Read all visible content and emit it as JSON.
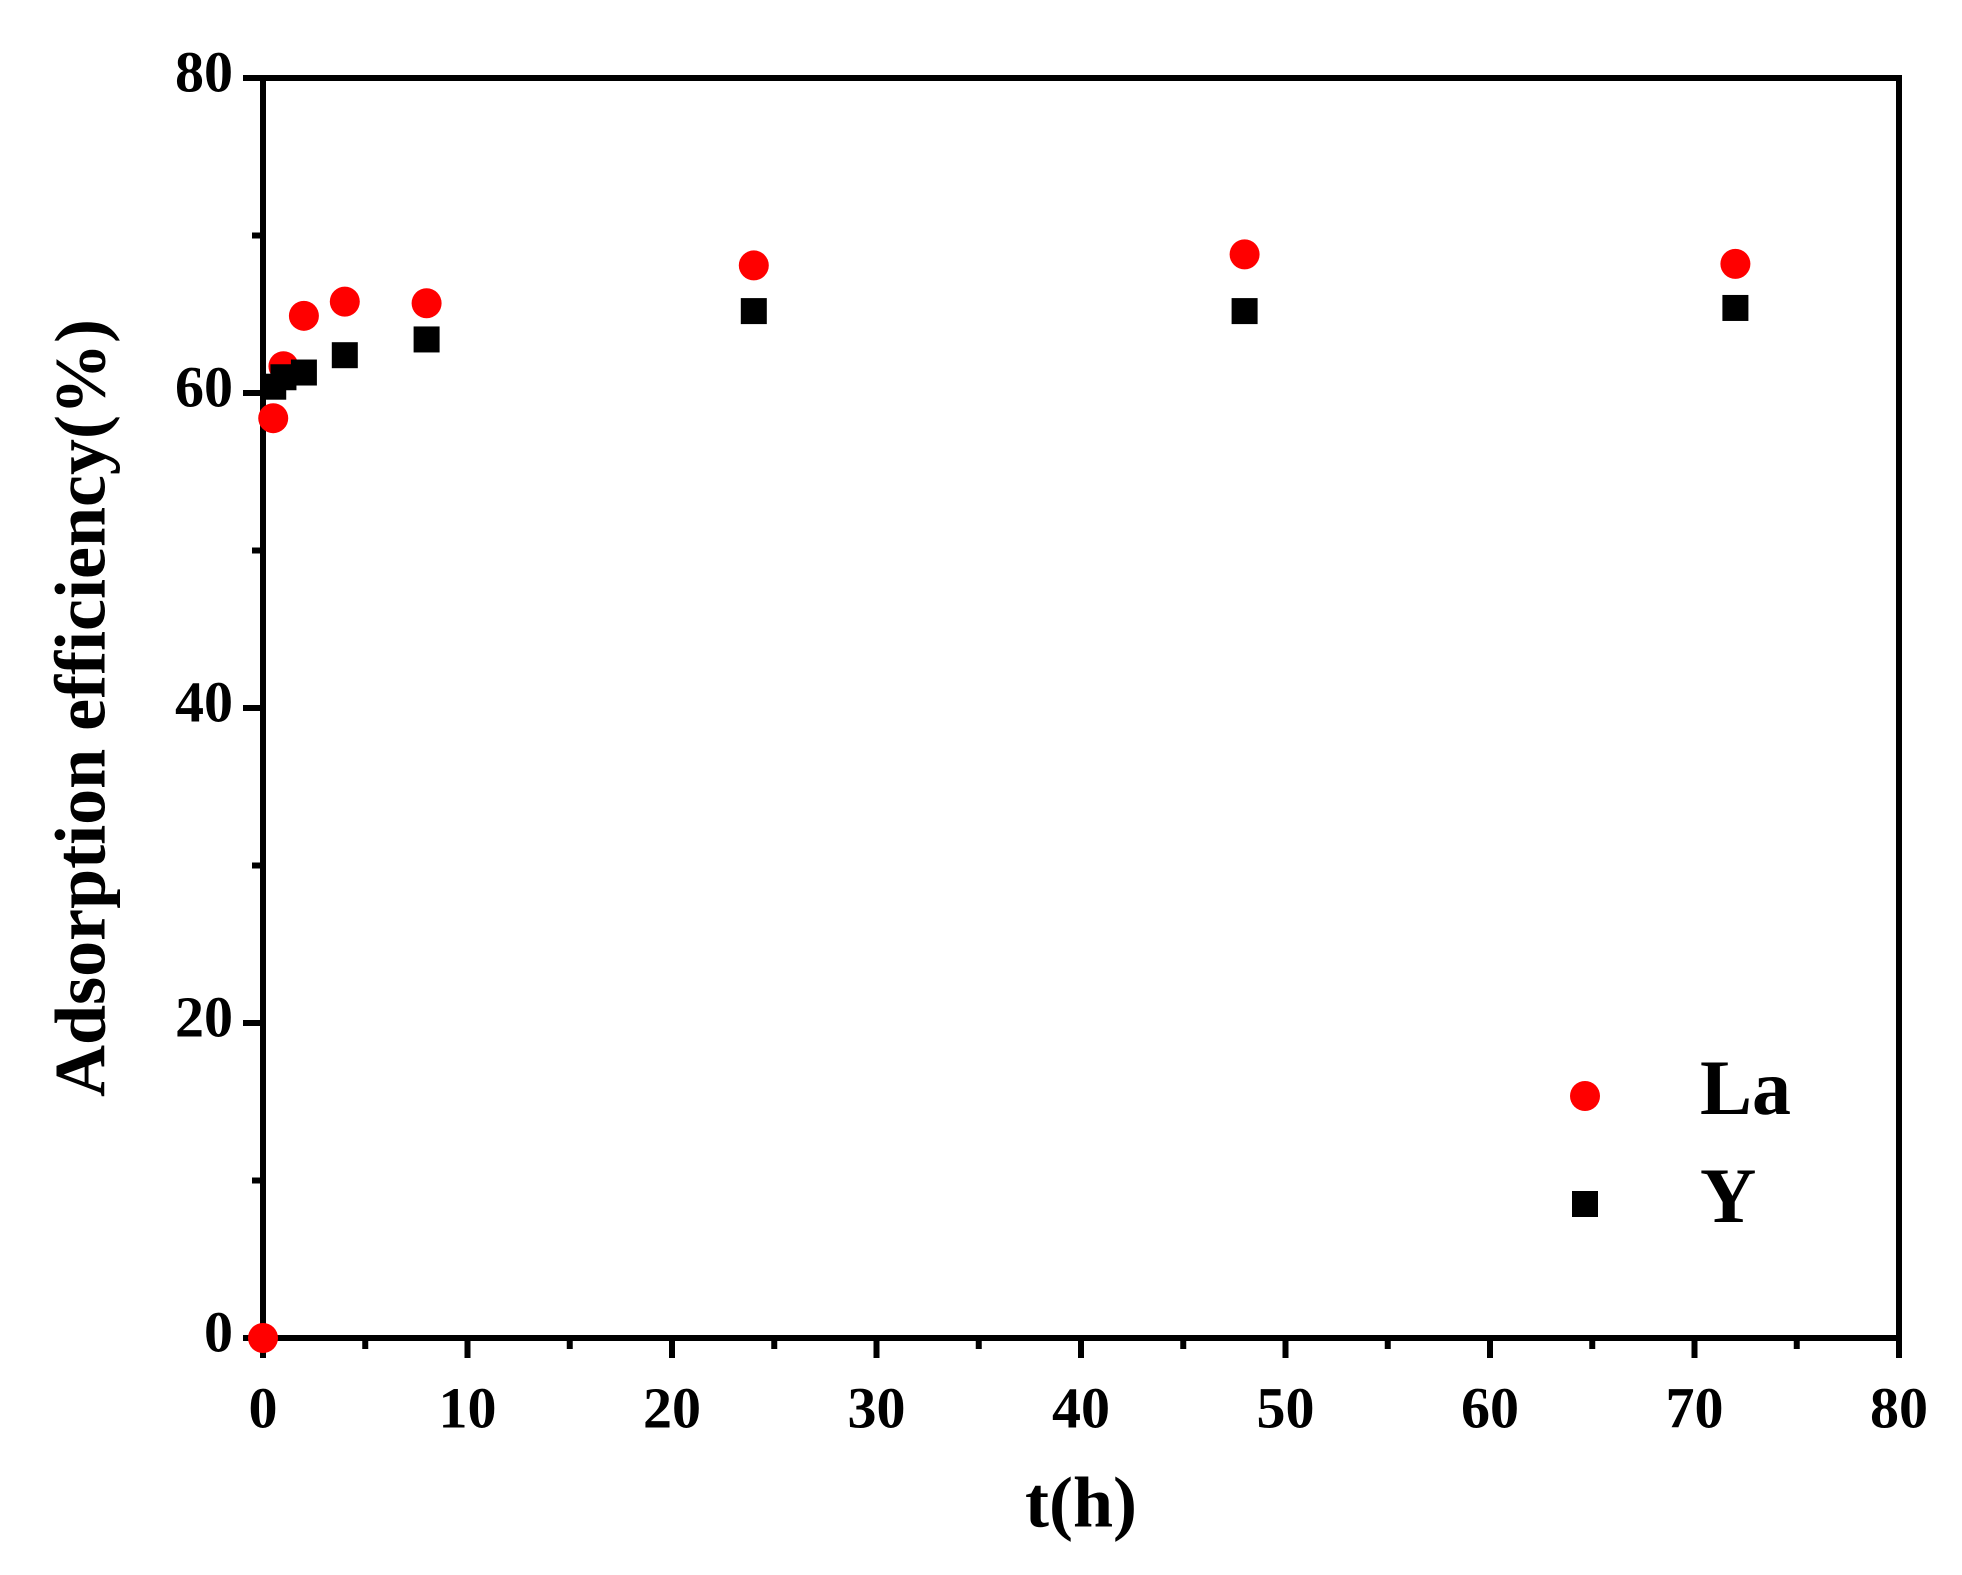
{
  "chart_data": {
    "type": "scatter",
    "x_label": "t(h)",
    "y_label": "Adsorption efficiency(%)",
    "xlim": [
      0,
      80
    ],
    "ylim": [
      0,
      80
    ],
    "xticks": [
      0,
      10,
      20,
      30,
      40,
      50,
      60,
      70,
      80
    ],
    "yticks": [
      0,
      20,
      40,
      60,
      80
    ],
    "x_minor_ticks": [
      5,
      15,
      25,
      35,
      45,
      55,
      65,
      75
    ],
    "y_minor_ticks": [
      10,
      30,
      50,
      70
    ],
    "legend": "lower right",
    "series": [
      {
        "name": "La",
        "color": "#ff0000",
        "marker": "circle",
        "x": [
          0,
          0.5,
          1,
          2,
          4,
          8,
          24,
          48,
          72
        ],
        "values": [
          0,
          58.4,
          61.7,
          64.9,
          65.8,
          65.7,
          68.1,
          68.8,
          68.2
        ]
      },
      {
        "name": "Y",
        "color": "#000000",
        "marker": "square",
        "x": [
          0.5,
          1,
          2,
          4,
          8,
          24,
          48,
          72
        ],
        "values": [
          60.4,
          61.0,
          61.3,
          62.4,
          63.4,
          65.2,
          65.2,
          65.4
        ]
      }
    ]
  }
}
